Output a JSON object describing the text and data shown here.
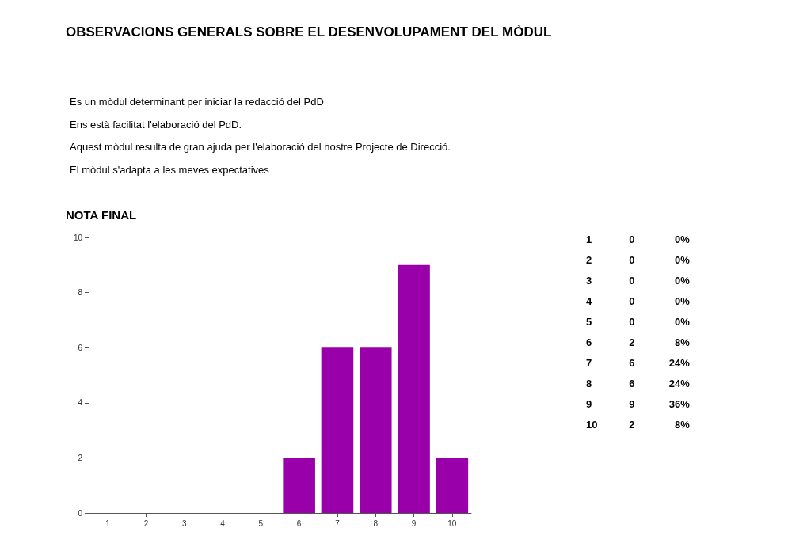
{
  "chart_data": [
    {
      "type": "bar",
      "title": "OBSERVACIONS GENERALS SOBRE EL DESENVOLUPAMENT DEL MÒDUL",
      "subtitle": "NOTA FINAL",
      "annotations": [
        "Es un mòdul determinant per iniciar la redacció del PdD",
        "Ens està facilitat l'elaboració del PdD.",
        "Aquest mòdul resulta de gran ajuda per l'elaboració del nostre Projecte de Direcció.",
        "El mòdul s'adapta a les meves expectatives"
      ],
      "categories": [
        "1",
        "2",
        "3",
        "4",
        "5",
        "6",
        "7",
        "8",
        "9",
        "10"
      ],
      "values": [
        0,
        0,
        0,
        0,
        0,
        2,
        6,
        6,
        9,
        2
      ],
      "color": "#9900aa",
      "ylim": [
        0,
        10
      ],
      "yticks": [
        0,
        2,
        4,
        6,
        8,
        10
      ],
      "grid": false
    },
    {
      "type": "other",
      "annotations": [
        "1 0 0%",
        "2 0 0%",
        "3 0 0%",
        "4 0 0%",
        "5 0 0%",
        "6 2 8%",
        "7 6 24%",
        "8 6 24%",
        "9 9 36%",
        "10 2 8%"
      ]
    }
  ]
}
